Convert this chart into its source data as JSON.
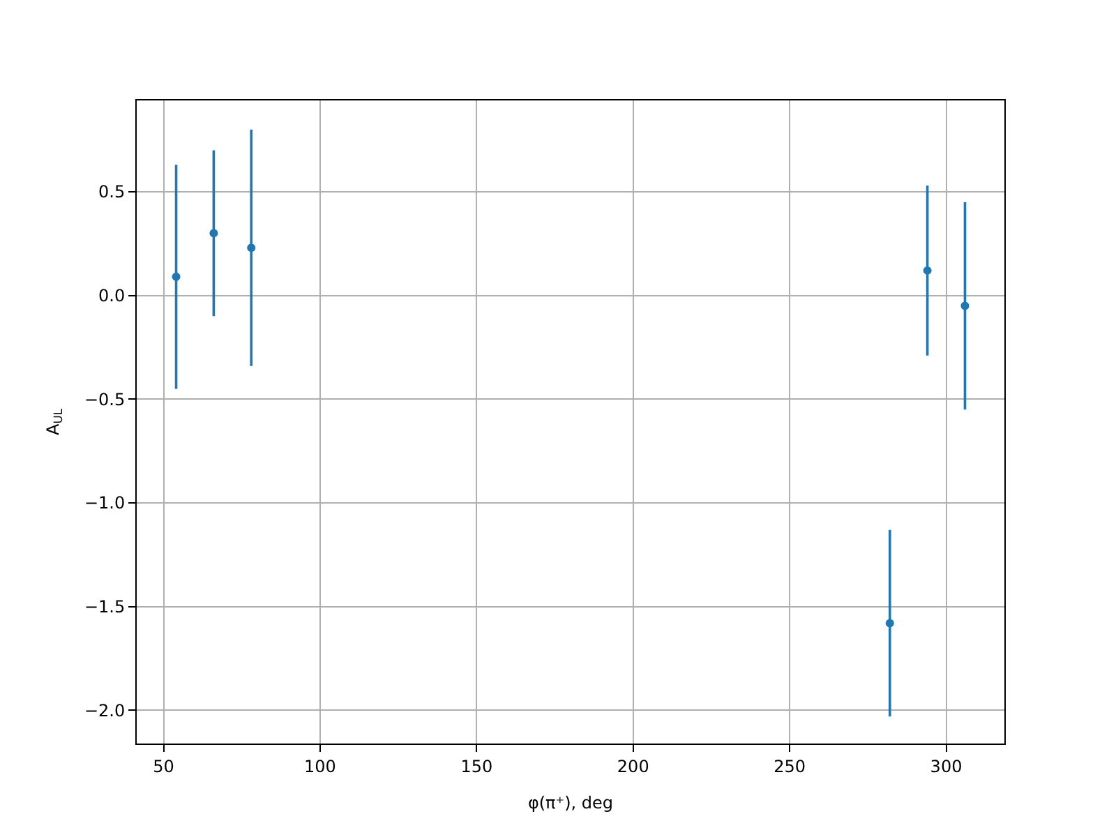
{
  "chart_data": {
    "type": "scatter",
    "xlabel": "φ(π⁺), deg",
    "ylabel": "A$_{UL}$",
    "x": [
      54,
      66,
      78,
      282,
      294,
      306
    ],
    "series": [
      {
        "color": "#1f77b4",
        "values": [
          0.09,
          0.3,
          0.23,
          -1.58,
          0.12,
          -0.05
        ],
        "errors": [
          0.54,
          0.4,
          0.57,
          0.45,
          0.41,
          0.5
        ]
      }
    ],
    "xlim": [
      41.4,
      318.6
    ],
    "xticks": [
      50,
      100,
      150,
      200,
      250,
      300
    ],
    "ylim": [
      -2.16,
      0.94
    ],
    "yticks": [
      {
        "value": -2.0,
        "label": "−2.0"
      },
      {
        "value": -1.5,
        "label": "−1.5"
      },
      {
        "value": -1.0,
        "label": "−1.0"
      },
      {
        "value": -0.5,
        "label": "−0.5"
      },
      {
        "value": 0,
        "label": "0.0"
      },
      0.5
    ],
    "grid": true,
    "marker": "circle"
  }
}
